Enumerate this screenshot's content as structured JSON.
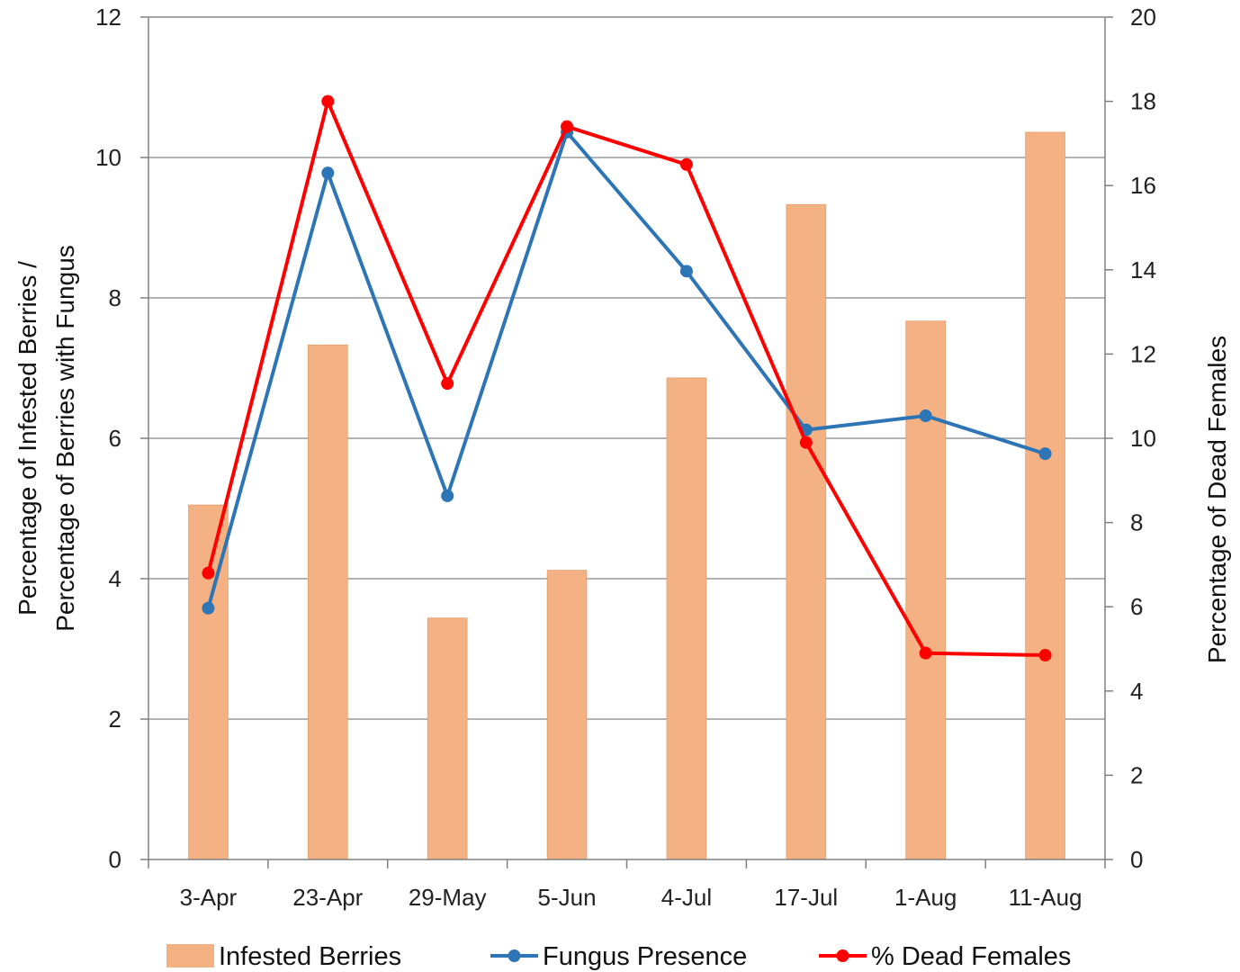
{
  "chart_data": {
    "type": "bar",
    "categories": [
      "3-Apr",
      "23-Apr",
      "29-May",
      "5-Jun",
      "4-Jul",
      "17-Jul",
      "1-Aug",
      "11-Aug"
    ],
    "series": [
      {
        "name": "Infested Berries",
        "kind": "bar",
        "axis": "left",
        "color": "#F4B183",
        "values": [
          5.05,
          7.33,
          3.44,
          4.12,
          6.86,
          9.33,
          7.67,
          10.36
        ]
      },
      {
        "name": "Fungus Presence",
        "kind": "line",
        "axis": "left",
        "color": "#2E75B6",
        "values": [
          3.58,
          9.78,
          5.18,
          10.36,
          8.38,
          6.12,
          6.32,
          5.78
        ]
      },
      {
        "name": "% Dead Females",
        "kind": "line",
        "axis": "right",
        "color": "#FF0000",
        "values": [
          6.8,
          18.0,
          11.3,
          17.4,
          16.5,
          9.9,
          4.9,
          4.85
        ]
      }
    ],
    "ylabel_left": "Percentage of Infested Berries / Percentage of Berries with Fungus",
    "ylabel_left_lines": [
      "Percentage of Infested Berries /",
      "Percentage of Berries with Fungus"
    ],
    "ylabel_right": "Percentage of Dead Females",
    "xlabel": "",
    "ylim_left": [
      0,
      12
    ],
    "yticks_left": [
      "0",
      "2",
      "4",
      "6",
      "8",
      "10",
      "12"
    ],
    "ylim_right": [
      0,
      20
    ],
    "yticks_right": [
      "0",
      "2",
      "4",
      "6",
      "8",
      "10",
      "12",
      "14",
      "16",
      "18",
      "20"
    ],
    "grid": true,
    "legend_position": "bottom"
  }
}
